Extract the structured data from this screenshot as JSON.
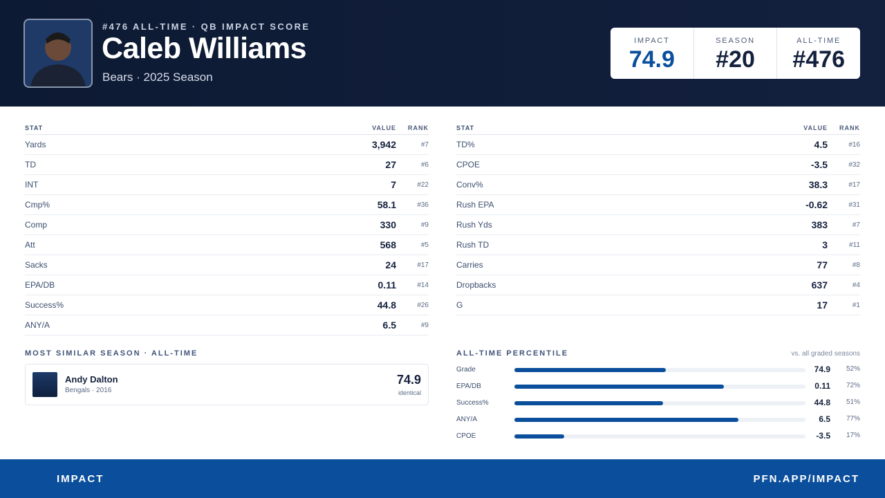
{
  "header": {
    "eyebrow": "#476 ALL-TIME · QB IMPACT SCORE",
    "name": "Caleb Williams",
    "subtitle": "Bears · 2025 Season",
    "scores": [
      {
        "label": "IMPACT",
        "value": "74.9"
      },
      {
        "label": "SEASON",
        "value": "#20"
      },
      {
        "label": "ALL-TIME",
        "value": "#476"
      }
    ]
  },
  "stats_left": {
    "columns": [
      "STAT",
      "VALUE",
      "RANK"
    ],
    "rows": [
      [
        "Yards",
        "3,942",
        "#7"
      ],
      [
        "TD",
        "27",
        "#6"
      ],
      [
        "INT",
        "7",
        "#22"
      ],
      [
        "Cmp%",
        "58.1",
        "#36"
      ],
      [
        "Comp",
        "330",
        "#9"
      ],
      [
        "Att",
        "568",
        "#5"
      ],
      [
        "Sacks",
        "24",
        "#17"
      ],
      [
        "EPA/DB",
        "0.11",
        "#14"
      ],
      [
        "Success%",
        "44.8",
        "#26"
      ],
      [
        "ANY/A",
        "6.5",
        "#9"
      ]
    ]
  },
  "stats_right": {
    "columns": [
      "STAT",
      "VALUE",
      "RANK"
    ],
    "rows": [
      [
        "TD%",
        "4.5",
        "#16"
      ],
      [
        "CPOE",
        "-3.5",
        "#32"
      ],
      [
        "Conv%",
        "38.3",
        "#17"
      ],
      [
        "Rush EPA",
        "-0.62",
        "#31"
      ],
      [
        "Rush Yds",
        "383",
        "#7"
      ],
      [
        "Rush TD",
        "3",
        "#11"
      ],
      [
        "Carries",
        "77",
        "#8"
      ],
      [
        "Dropbacks",
        "637",
        "#4"
      ],
      [
        "G",
        "17",
        "#1"
      ]
    ]
  },
  "similar": {
    "title": "MOST SIMILAR SEASON · ALL-TIME",
    "player": "Andy Dalton",
    "detail": "Bengals · 2016",
    "score": "74.9",
    "note": "identical"
  },
  "percentile": {
    "title": "ALL-TIME PERCENTILE",
    "note": "vs. all graded seasons",
    "rows": [
      {
        "stat": "Grade",
        "value": "74.9",
        "percentile": {
          "value": 52,
          "label": "52%"
        }
      },
      {
        "stat": "EPA/DB",
        "value": "0.11",
        "percentile": {
          "value": 72,
          "label": "72%"
        }
      },
      {
        "stat": "Success%",
        "value": "44.8",
        "percentile": {
          "value": 51,
          "label": "51%"
        }
      },
      {
        "stat": "ANY/A",
        "value": "6.5",
        "percentile": {
          "value": 77,
          "label": "77%"
        }
      },
      {
        "stat": "CPOE",
        "value": "-3.5",
        "percentile": {
          "value": 17,
          "label": "17%"
        }
      }
    ]
  },
  "footer": {
    "left": "IMPACT",
    "right": "PFN.APP/IMPACT"
  }
}
